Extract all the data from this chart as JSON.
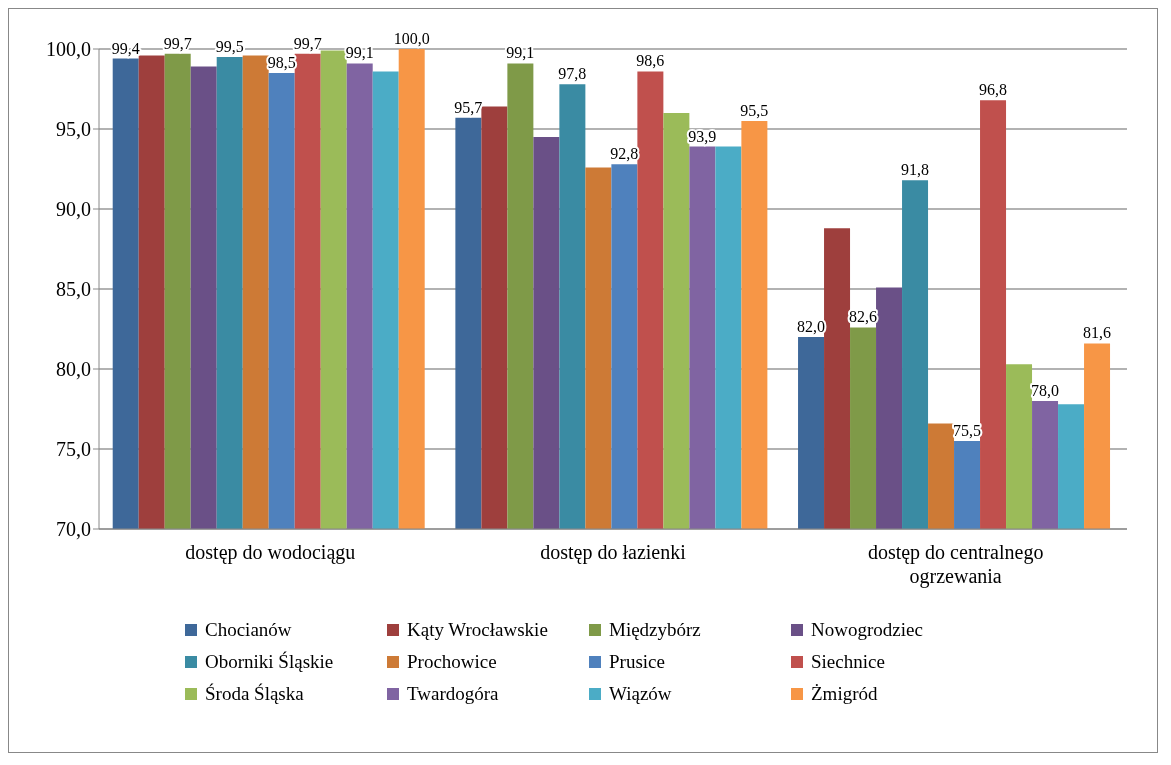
{
  "chart_data": {
    "type": "bar",
    "categories": [
      "dostęp do wodociągu",
      "dostęp do łazienki",
      "dostęp do centralnego ogrzewania"
    ],
    "series": [
      {
        "name": "Chocianów",
        "color": "#3e6899",
        "values": [
          99.4,
          95.7,
          82.0
        ],
        "value_labels": [
          "99,4",
          "95,7",
          "82,0"
        ]
      },
      {
        "name": "Kąty Wrocławskie",
        "color": "#9e3f3d",
        "values": [
          99.6,
          96.4,
          88.8
        ],
        "value_labels": [
          null,
          null,
          null
        ]
      },
      {
        "name": "Międzybórz",
        "color": "#7f9a48",
        "values": [
          99.7,
          99.1,
          82.6
        ],
        "value_labels": [
          "99,7",
          "99,1",
          "82,6"
        ]
      },
      {
        "name": "Nowogrodziec",
        "color": "#6a5087",
        "values": [
          98.9,
          94.5,
          85.1
        ],
        "value_labels": [
          null,
          null,
          null
        ]
      },
      {
        "name": "Oborniki Śląskie",
        "color": "#3a8ba3",
        "values": [
          99.5,
          97.8,
          91.8
        ],
        "value_labels": [
          "99,5",
          "97,8",
          "91,8"
        ]
      },
      {
        "name": "Prochowice",
        "color": "#cd7a36",
        "values": [
          99.6,
          92.6,
          76.6
        ],
        "value_labels": [
          null,
          null,
          null
        ]
      },
      {
        "name": "Prusice",
        "color": "#4f81bd",
        "values": [
          98.5,
          92.8,
          75.5
        ],
        "value_labels": [
          "98,5",
          "92,8",
          "75,5"
        ]
      },
      {
        "name": "Siechnice",
        "color": "#c0504d",
        "values": [
          99.7,
          98.6,
          96.8
        ],
        "value_labels": [
          "99,7",
          "98,6",
          "96,8"
        ]
      },
      {
        "name": "Środa Śląska",
        "color": "#9bbb59",
        "values": [
          99.9,
          96.0,
          80.3
        ],
        "value_labels": [
          null,
          null,
          null
        ]
      },
      {
        "name": "Twardogóra",
        "color": "#8064a2",
        "values": [
          99.1,
          93.9,
          78.0
        ],
        "value_labels": [
          "99,1",
          "93,9",
          "78,0"
        ]
      },
      {
        "name": "Wiązów",
        "color": "#4bacc6",
        "values": [
          98.6,
          93.9,
          77.8
        ],
        "value_labels": [
          null,
          null,
          null
        ]
      },
      {
        "name": "Żmigród",
        "color": "#f79646",
        "values": [
          100.0,
          95.5,
          81.6
        ],
        "value_labels": [
          "100,0",
          "95,5",
          "81,6"
        ]
      }
    ],
    "ylim": [
      70,
      100
    ],
    "yticks": [
      {
        "value": 70,
        "label": "70,0"
      },
      {
        "value": 75,
        "label": "75,0"
      },
      {
        "value": 80,
        "label": "80,0"
      },
      {
        "value": 85,
        "label": "85,0"
      },
      {
        "value": 90,
        "label": "90,0"
      },
      {
        "value": 95,
        "label": "95,0"
      },
      {
        "value": 100,
        "label": "100,0"
      }
    ],
    "grid": "y",
    "legend": "bottom"
  }
}
